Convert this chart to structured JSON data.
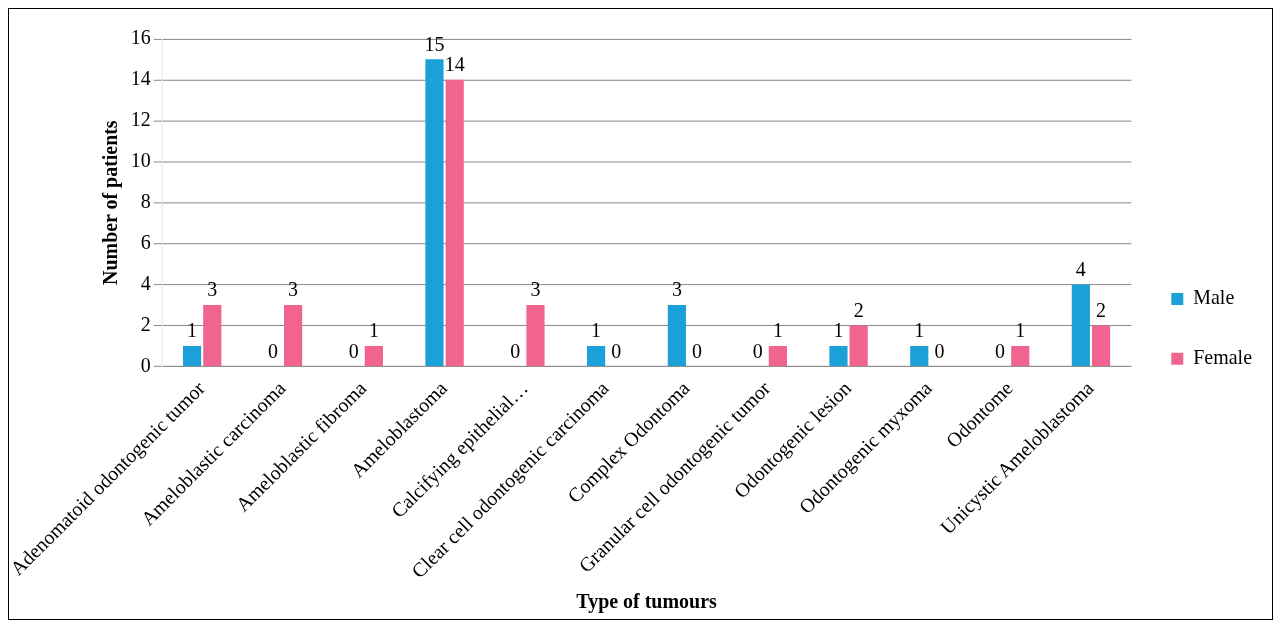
{
  "chart_data": {
    "type": "bar",
    "xlabel": "Type of tumours",
    "ylabel": "Number of patients",
    "categories": [
      "Adenomatoid odontogenic tumor",
      "Ameloblastic carcinoma",
      "Ameloblastic fibroma",
      "Ameloblastoma",
      "Calcifying epithelial…",
      "Clear cell odontogenic carcinoma",
      "Complex Odontoma",
      "Granular cell odontogenic tumor",
      "Odontogenic lesion",
      "Odontogenic myxoma",
      "Odontome",
      "Unicystic Ameloblastoma"
    ],
    "series": [
      {
        "name": "Male",
        "color": "#1ba1d8",
        "values": [
          1,
          0,
          0,
          15,
          0,
          1,
          3,
          0,
          1,
          1,
          0,
          4
        ]
      },
      {
        "name": "Female",
        "color": "#f0648f",
        "values": [
          3,
          3,
          1,
          14,
          3,
          0,
          0,
          1,
          2,
          0,
          1,
          2
        ]
      }
    ],
    "ylim": [
      0,
      16
    ],
    "yticks": [
      0,
      2,
      4,
      6,
      8,
      10,
      12,
      14,
      16
    ],
    "grid": "y",
    "legend": "right",
    "data_labels": true
  }
}
